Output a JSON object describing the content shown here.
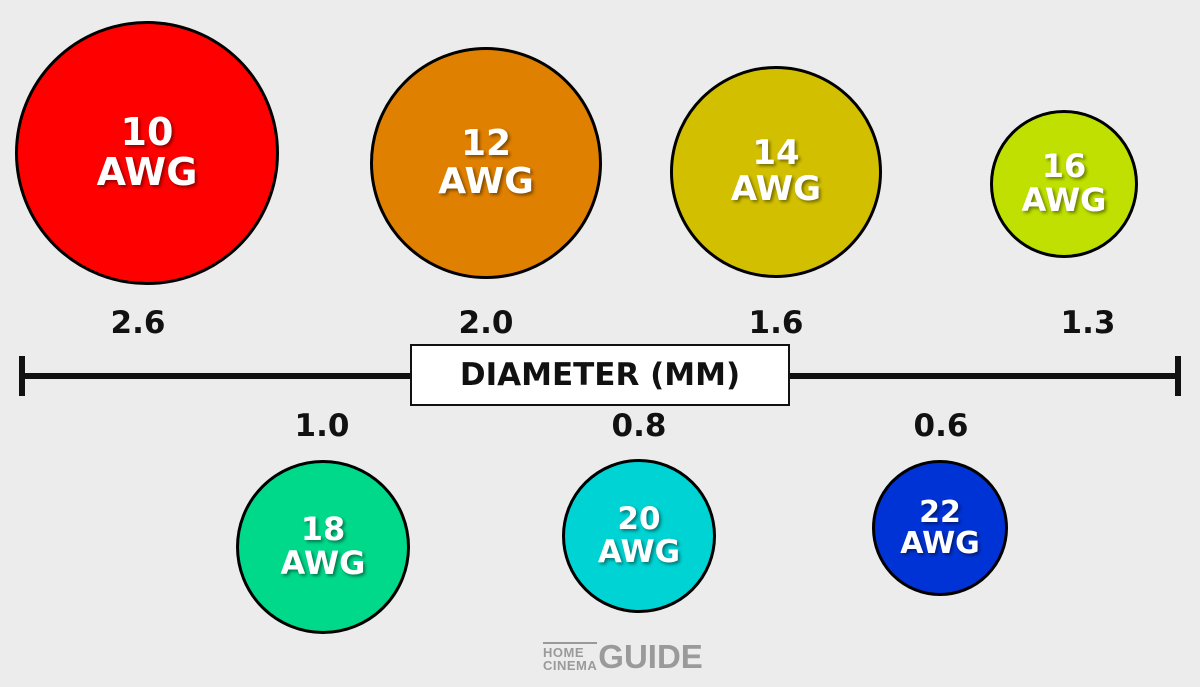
{
  "axis_label": "DIAMETER (MM)",
  "wires": [
    {
      "gauge": "10",
      "unit": "AWG",
      "diameter": "2.6",
      "color": "#ff0000"
    },
    {
      "gauge": "12",
      "unit": "AWG",
      "diameter": "2.0",
      "color": "#e08000"
    },
    {
      "gauge": "14",
      "unit": "AWG",
      "diameter": "1.6",
      "color": "#d2c000"
    },
    {
      "gauge": "16",
      "unit": "AWG",
      "diameter": "1.3",
      "color": "#bfe000"
    },
    {
      "gauge": "18",
      "unit": "AWG",
      "diameter": "1.0",
      "color": "#00d98a"
    },
    {
      "gauge": "20",
      "unit": "AWG",
      "diameter": "0.8",
      "color": "#00d3d3"
    },
    {
      "gauge": "22",
      "unit": "AWG",
      "diameter": "0.6",
      "color": "#0033d6"
    }
  ],
  "logo": {
    "line1": "HOME",
    "line2": "CINEMA",
    "line3": "GUIDE"
  }
}
